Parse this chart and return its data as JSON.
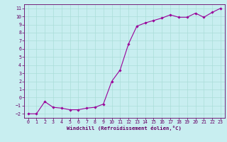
{
  "x": [
    0,
    1,
    2,
    3,
    4,
    5,
    6,
    7,
    8,
    9,
    10,
    11,
    12,
    13,
    14,
    15,
    16,
    17,
    18,
    19,
    20,
    21,
    22,
    23
  ],
  "y": [
    -2.0,
    -2.0,
    -0.5,
    -1.2,
    -1.3,
    -1.5,
    -1.5,
    -1.3,
    -1.2,
    -0.8,
    2.0,
    3.4,
    6.6,
    8.8,
    9.2,
    9.5,
    9.8,
    10.2,
    9.9,
    9.9,
    10.4,
    9.9,
    10.5,
    11.0
  ],
  "line_color": "#990099",
  "marker": "D",
  "marker_size": 1.8,
  "bg_color": "#c8eef0",
  "grid_color": "#aaddd8",
  "xlabel": "Windchill (Refroidissement éolien,°C)",
  "ylim": [
    -2.5,
    11.5
  ],
  "xlim": [
    -0.5,
    23.5
  ],
  "yticks": [
    -2,
    -1,
    0,
    1,
    2,
    3,
    4,
    5,
    6,
    7,
    8,
    9,
    10,
    11
  ],
  "xticks": [
    0,
    1,
    2,
    3,
    4,
    5,
    6,
    7,
    8,
    9,
    10,
    11,
    12,
    13,
    14,
    15,
    16,
    17,
    18,
    19,
    20,
    21,
    22,
    23
  ],
  "label_fontsize": 5.2,
  "tick_fontsize": 4.8,
  "axis_color": "#660066",
  "linewidth": 0.8
}
